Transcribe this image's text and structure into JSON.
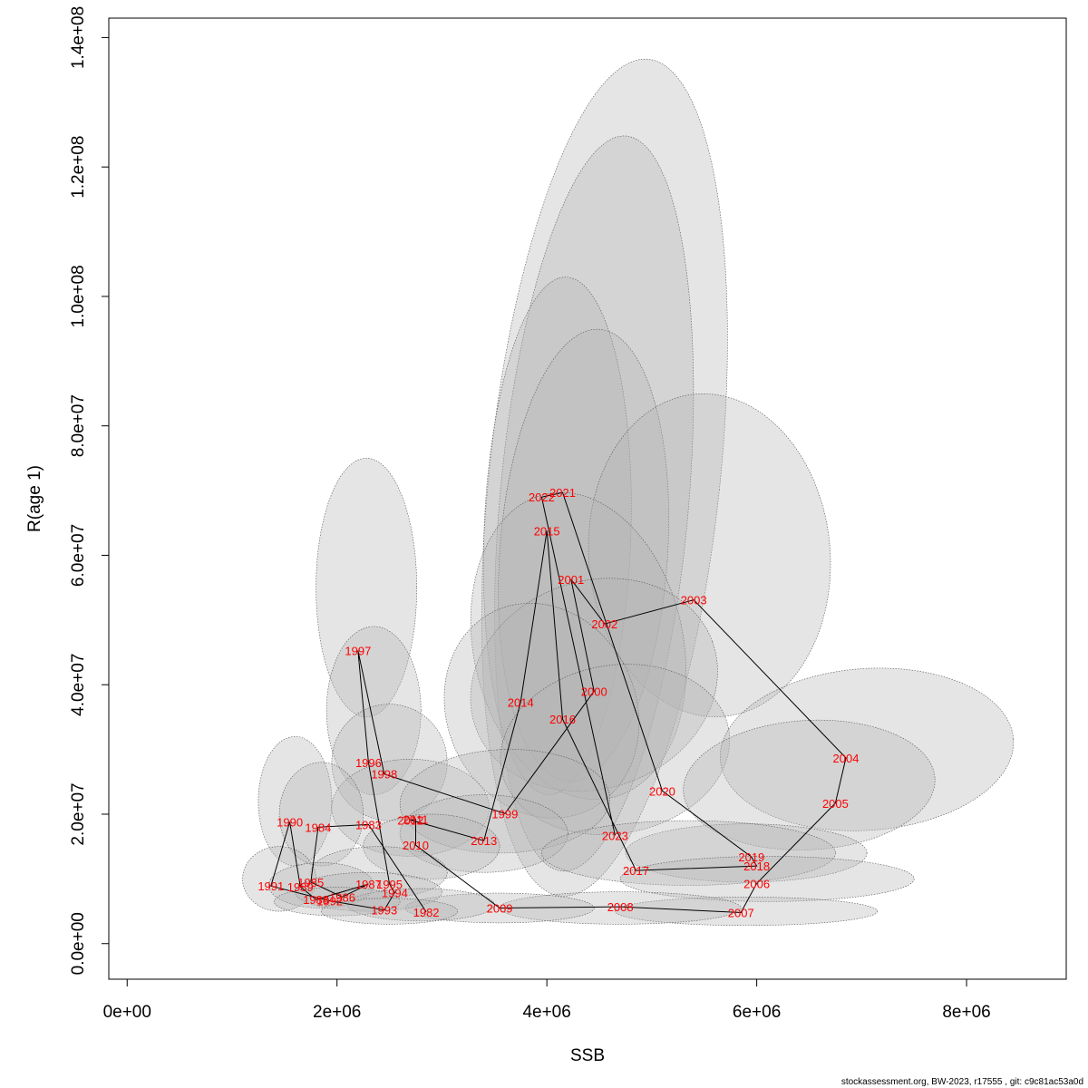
{
  "chart_data": {
    "type": "scatter",
    "subtype": "stock-recruitment with confidence ellipses",
    "title": "",
    "xlabel": "SSB",
    "ylabel": "R(age 1)",
    "xlim": [
      -175000,
      8950000
    ],
    "ylim": [
      -5500000,
      143000000
    ],
    "xticks": [
      0,
      2000000,
      4000000,
      6000000,
      8000000
    ],
    "xtick_labels": [
      "0e+00",
      "2e+06",
      "4e+06",
      "6e+06",
      "8e+06"
    ],
    "yticks": [
      0,
      20000000,
      40000000,
      60000000,
      80000000,
      100000000,
      120000000,
      140000000
    ],
    "ytick_labels": [
      "0.0e+00",
      "2.0e+07",
      "4.0e+07",
      "6.0e+07",
      "8.0e+07",
      "1.0e+08",
      "1.2e+08",
      "1.4e+08"
    ],
    "grid": false,
    "ellipse_fill": "#b4b4b4",
    "ellipse_fill_opacity": 0.35,
    "ellipse_stroke": "#555555",
    "path_color": "#000000",
    "label_color": "#ff0000",
    "points": [
      {
        "year": "1982",
        "ssb": 2850000,
        "r": 4900000
      },
      {
        "year": "1983",
        "ssb": 2300000,
        "r": 18400000
      },
      {
        "year": "1984",
        "ssb": 1820000,
        "r": 18000000
      },
      {
        "year": "1985",
        "ssb": 1750000,
        "r": 9500000
      },
      {
        "year": "1986",
        "ssb": 2050000,
        "r": 7200000
      },
      {
        "year": "1987",
        "ssb": 2300000,
        "r": 9200000
      },
      {
        "year": "1988",
        "ssb": 1800000,
        "r": 6800000
      },
      {
        "year": "1989",
        "ssb": 1650000,
        "r": 8800000
      },
      {
        "year": "1990",
        "ssb": 1550000,
        "r": 18800000
      },
      {
        "year": "1991",
        "ssb": 1370000,
        "r": 8900000
      },
      {
        "year": "1992",
        "ssb": 1930000,
        "r": 6600000
      },
      {
        "year": "1993",
        "ssb": 2450000,
        "r": 5200000
      },
      {
        "year": "1994",
        "ssb": 2550000,
        "r": 7900000
      },
      {
        "year": "1995",
        "ssb": 2500000,
        "r": 9200000
      },
      {
        "year": "1996",
        "ssb": 2300000,
        "r": 28000000
      },
      {
        "year": "1997",
        "ssb": 2200000,
        "r": 45300000
      },
      {
        "year": "1998",
        "ssb": 2450000,
        "r": 26200000
      },
      {
        "year": "1999",
        "ssb": 3600000,
        "r": 20100000
      },
      {
        "year": "2000",
        "ssb": 4450000,
        "r": 39000000
      },
      {
        "year": "2001",
        "ssb": 4230000,
        "r": 56300000
      },
      {
        "year": "2002",
        "ssb": 4550000,
        "r": 49400000
      },
      {
        "year": "2003",
        "ssb": 5400000,
        "r": 53100000
      },
      {
        "year": "2004",
        "ssb": 6850000,
        "r": 28700000
      },
      {
        "year": "2005",
        "ssb": 6750000,
        "r": 21700000
      },
      {
        "year": "2006",
        "ssb": 6000000,
        "r": 9300000
      },
      {
        "year": "2007",
        "ssb": 5850000,
        "r": 4800000
      },
      {
        "year": "2008",
        "ssb": 4700000,
        "r": 5700000
      },
      {
        "year": "2009",
        "ssb": 3550000,
        "r": 5500000
      },
      {
        "year": "2010",
        "ssb": 2750000,
        "r": 15200000
      },
      {
        "year": "2011",
        "ssb": 2750000,
        "r": 19200000
      },
      {
        "year": "2012",
        "ssb": 2700000,
        "r": 19100000
      },
      {
        "year": "2013",
        "ssb": 3400000,
        "r": 15900000
      },
      {
        "year": "2014",
        "ssb": 3750000,
        "r": 37300000
      },
      {
        "year": "2015",
        "ssb": 4000000,
        "r": 63800000
      },
      {
        "year": "2016",
        "ssb": 4150000,
        "r": 34700000
      },
      {
        "year": "2017",
        "ssb": 4850000,
        "r": 11300000
      },
      {
        "year": "2018",
        "ssb": 6000000,
        "r": 12000000
      },
      {
        "year": "2019",
        "ssb": 5950000,
        "r": 13400000
      },
      {
        "year": "2020",
        "ssb": 5100000,
        "r": 23600000
      },
      {
        "year": "2021",
        "ssb": 4150000,
        "r": 69700000
      },
      {
        "year": "2022",
        "ssb": 3950000,
        "r": 69000000
      },
      {
        "year": "2023",
        "ssb": 4650000,
        "r": 16700000
      }
    ],
    "ellipses": [
      {
        "cx": 4550000,
        "cy": 72000000,
        "rx": 1100000,
        "ry": 65000000,
        "tilt": 6
      },
      {
        "cx": 4450000,
        "cy": 68000000,
        "rx": 900000,
        "ry": 57000000,
        "tilt": 5
      },
      {
        "cx": 4100000,
        "cy": 63000000,
        "rx": 700000,
        "ry": 40000000,
        "tilt": 2
      },
      {
        "cx": 4350000,
        "cy": 60000000,
        "rx": 800000,
        "ry": 35000000,
        "tilt": 4
      },
      {
        "cx": 5550000,
        "cy": 60000000,
        "rx": 1150000,
        "ry": 25000000,
        "tilt": -5
      },
      {
        "cx": 4300000,
        "cy": 46000000,
        "rx": 1000000,
        "ry": 24000000,
        "tilt": -12
      },
      {
        "cx": 4450000,
        "cy": 40000000,
        "rx": 1200000,
        "ry": 16000000,
        "tilt": -20
      },
      {
        "cx": 3950000,
        "cy": 36000000,
        "rx": 900000,
        "ry": 17000000,
        "tilt": -25
      },
      {
        "cx": 4650000,
        "cy": 30000000,
        "rx": 1100000,
        "ry": 13000000,
        "tilt": -10
      },
      {
        "cx": 7050000,
        "cy": 30000000,
        "rx": 1400000,
        "ry": 12500000,
        "tilt": -4
      },
      {
        "cx": 6500000,
        "cy": 24500000,
        "rx": 1200000,
        "ry": 10000000,
        "tilt": -3
      },
      {
        "cx": 2280000,
        "cy": 55000000,
        "rx": 480000,
        "ry": 20000000,
        "tilt": 0
      },
      {
        "cx": 2350000,
        "cy": 36000000,
        "rx": 450000,
        "ry": 13000000,
        "tilt": 0
      },
      {
        "cx": 2500000,
        "cy": 28000000,
        "rx": 550000,
        "ry": 9000000,
        "tilt": -5
      },
      {
        "cx": 2700000,
        "cy": 21000000,
        "rx": 750000,
        "ry": 7500000,
        "tilt": 0
      },
      {
        "cx": 3600000,
        "cy": 22000000,
        "rx": 1000000,
        "ry": 8000000,
        "tilt": -2
      },
      {
        "cx": 3400000,
        "cy": 17000000,
        "rx": 800000,
        "ry": 6000000,
        "tilt": 0
      },
      {
        "cx": 1600000,
        "cy": 22000000,
        "rx": 350000,
        "ry": 10000000,
        "tilt": 0
      },
      {
        "cx": 1850000,
        "cy": 20000000,
        "rx": 400000,
        "ry": 8000000,
        "tilt": 0
      },
      {
        "cx": 5900000,
        "cy": 14000000,
        "rx": 1150000,
        "ry": 4500000,
        "tilt": 0
      },
      {
        "cx": 5350000,
        "cy": 14000000,
        "rx": 1400000,
        "ry": 5000000,
        "tilt": 0
      },
      {
        "cx": 6100000,
        "cy": 10000000,
        "rx": 1400000,
        "ry": 3500000,
        "tilt": 0
      },
      {
        "cx": 5900000,
        "cy": 5000000,
        "rx": 1250000,
        "ry": 2200000,
        "tilt": 0
      },
      {
        "cx": 4700000,
        "cy": 5500000,
        "rx": 1150000,
        "ry": 2500000,
        "tilt": 0
      },
      {
        "cx": 3550000,
        "cy": 5500000,
        "rx": 900000,
        "ry": 2300000,
        "tilt": 0
      },
      {
        "cx": 2900000,
        "cy": 15000000,
        "rx": 650000,
        "ry": 5000000,
        "tilt": 0
      },
      {
        "cx": 2400000,
        "cy": 11000000,
        "rx": 650000,
        "ry": 4000000,
        "tilt": 0
      },
      {
        "cx": 1450000,
        "cy": 10000000,
        "rx": 350000,
        "ry": 5000000,
        "tilt": 0
      },
      {
        "cx": 1850000,
        "cy": 9000000,
        "rx": 500000,
        "ry": 3500000,
        "tilt": 0
      },
      {
        "cx": 2300000,
        "cy": 8000000,
        "rx": 700000,
        "ry": 3000000,
        "tilt": 0
      },
      {
        "cx": 2800000,
        "cy": 6000000,
        "rx": 700000,
        "ry": 2500000,
        "tilt": 0
      },
      {
        "cx": 2000000,
        "cy": 6500000,
        "rx": 600000,
        "ry": 2200000,
        "tilt": 0
      },
      {
        "cx": 2500000,
        "cy": 5000000,
        "rx": 650000,
        "ry": 2000000,
        "tilt": 0
      }
    ]
  },
  "footer": "stockassessment.org, BW-2023, r17555 , git: c9c81ac53a0d"
}
